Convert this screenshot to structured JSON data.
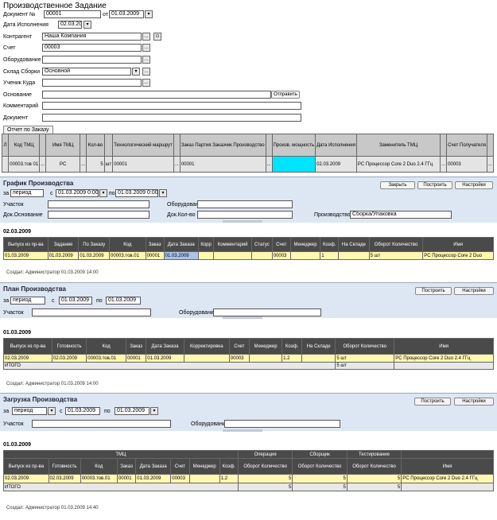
{
  "title": "Производственное Задание",
  "form": {
    "doc_label": "Документ №",
    "doc_value": "00001",
    "from_label": "от",
    "from_value": "01.03.2009",
    "date_exec_label": "Дата Исполнения",
    "date_exec_value": "02.03.2009",
    "contractor_label": "Контрагент",
    "contractor_value": "Наша Компания",
    "account_label": "Счет",
    "account_value": "00003",
    "equipment_label": "Оборудование",
    "equipment_value": "",
    "schedule_label": "Склад Сборки",
    "schedule_value": "Основной",
    "ustanov_label": "Ученик Куда",
    "ustanov_value": "",
    "basis_label": "Основание",
    "basis_value": "",
    "send_button": "Отправить",
    "comment_label": "Комментарий",
    "comment_value": "",
    "document_label": "Документ",
    "document_value": ""
  },
  "tab_label": "Отчет по Заказу",
  "main_table": {
    "headers": [
      "Л",
      "Код ТМЦ",
      "",
      "Имя ТМЦ",
      "",
      "Кол-во",
      "",
      "Технологический маршрут",
      "",
      "Заказ Партия Заказчик Производство",
      "",
      "Произв. мощность",
      "Дата Исполнения",
      "Заменитель ТМЦ",
      "",
      "Счет Получателя",
      ""
    ],
    "row": [
      "",
      "00003.тов 01",
      "...",
      "PC",
      "...",
      "5",
      "шт",
      "00001",
      "...",
      "00001",
      "...",
      "",
      "02.03.2009",
      "PC Процессор Core 2 Duo 2.4 ГГц",
      "...",
      "00003",
      "..."
    ]
  },
  "graph_panel": {
    "title": "График Производства",
    "btn_close": "Закрыть",
    "btn_build": "Построить",
    "btn_settings": "Настройки",
    "period_label": "за",
    "period_value": "период",
    "from_label": "с",
    "from_value": "01.03.2009 0:00",
    "to_label": "по",
    "to_value": "01.03.2009 0:00",
    "f1_label": "Участок",
    "f2_label": "Оборудование",
    "f3_label": "Док.Основание",
    "f4_label": "Док.Кол-во",
    "f5_label": "Производство",
    "f5_value": "Сборка/Упаковка"
  },
  "graph_section": {
    "date": "02.03.2009",
    "headers": [
      "Выпуск из пр-ва",
      "Задание",
      "По Заказу",
      "Код",
      "Заказ",
      "Дата Заказа",
      "Корр",
      "Комментарий",
      "Статус",
      "Счет",
      "Менеджер",
      "Коэф.",
      "На Складе",
      "Оборот Количество",
      "Имя"
    ],
    "row": [
      "01.03.2009",
      "01.03.2009",
      "01.03.2009",
      "00003.тов.01",
      "00001",
      "01.03.2009",
      "",
      "",
      "",
      "00003",
      "",
      "1",
      "",
      "5 шт",
      "PC Процессор Core 2 Duo"
    ],
    "footer": "Создал:   Администратор 01.03.2009 14:00"
  },
  "plan_panel": {
    "title": "План Производства",
    "btn_build": "Построить",
    "btn_settings": "Настройки",
    "period_label": "за",
    "period_value": "период",
    "from_label": "с",
    "from_value": "01.03.2009",
    "to_label": "по",
    "to_value": "01.03.2009",
    "f1_label": "Участок",
    "f2_label": "Оборудование"
  },
  "plan_section": {
    "date": "01.03.2009",
    "headers": [
      "Выпуск из пр-ва",
      "Готовность",
      "Код",
      "Заказ",
      "Дата Заказа",
      "Корректировка",
      "Счет",
      "Менеджер",
      "Коэф.",
      "На Складе",
      "Оборот Количество",
      "Имя"
    ],
    "row": [
      "02.03.2009",
      "02.03.2009",
      "00003.тов.01",
      "00001",
      "01.03.2009",
      "",
      "00003",
      "",
      "1.2",
      "",
      "5 шт",
      "PC Процессор Core 2 Duo 2.4 ГГц"
    ],
    "total_label": "ИТОГО",
    "total_value": "5 шт",
    "footer": "Создал:   Администратор 01.03.2009 14:00"
  },
  "load_panel": {
    "title": "Загрузка Производства",
    "btn_build": "Построить",
    "btn_settings": "Настройки",
    "period_label": "за",
    "period_value": "период",
    "from_label": "с",
    "from_value": "01.03.2009",
    "to_label": "по",
    "to_value": "01.03.2009",
    "f1_label": "Участок",
    "f2_label": "Оборудование"
  },
  "load_section": {
    "date": "01.03.2009",
    "group_tmc": "ТМЦ",
    "group_1": "Операция",
    "group_2": "Сборщик",
    "group_3": "Тестирование",
    "headers": [
      "Выпуск из пр-ва",
      "Готовность",
      "Код",
      "Заказ",
      "Дата Заказа",
      "Счет",
      "Менеджер",
      "Коэф.",
      "Оборот Количество",
      "Оборот Количество",
      "Оборот Количество",
      "Имя"
    ],
    "row": [
      "02.03.2009",
      "02.03.2009",
      "00003.тов.01",
      "00001",
      "01.03.2009",
      "00003",
      "",
      "1.2",
      "5",
      "5",
      "5",
      "PC Процессор Core 2 Duo 2.4 ГГц"
    ],
    "total_label": "ИТОГО",
    "total_values": [
      "5",
      "5",
      "5"
    ],
    "footer": "Создал:   Администратор 01.03.2009 14:40"
  }
}
